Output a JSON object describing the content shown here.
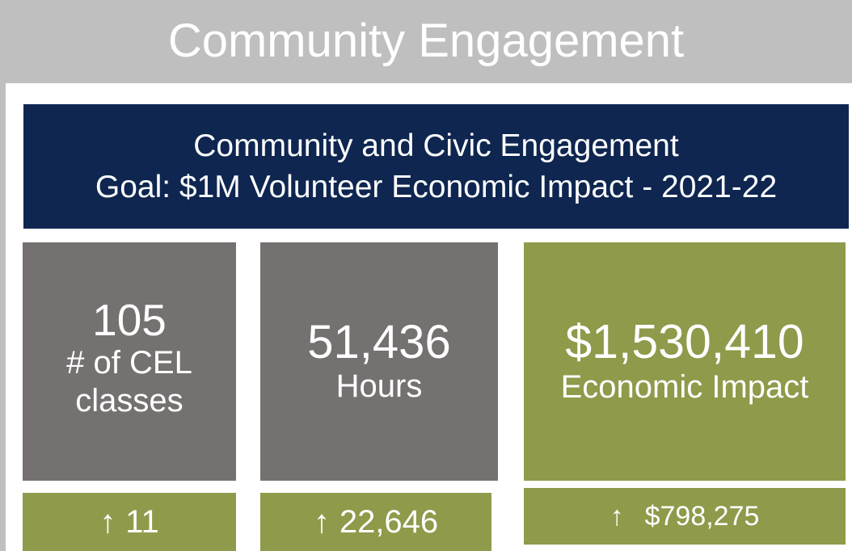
{
  "header": {
    "title": "Community Engagement"
  },
  "goal_banner": {
    "line1": "Community and Civic Engagement",
    "line2": "Goal: $1M Volunteer Economic Impact - 2021-22"
  },
  "metrics": [
    {
      "value": "105",
      "label": "# of CEL classes",
      "change": "11",
      "arrow": "↑"
    },
    {
      "value": "51,436",
      "label": "Hours",
      "change": "22,646",
      "arrow": "↑"
    },
    {
      "value": "$1,530,410",
      "label": "Economic Impact",
      "change": "$798,275",
      "arrow": "↑"
    }
  ],
  "colors": {
    "header_gray": "#bfbfbf",
    "banner_navy": "#0e2650",
    "tile_gray": "#767171",
    "tile_olive": "#8f9a4a",
    "text": "#ffffff"
  },
  "icons": {
    "increase": "arrow-up-icon"
  }
}
